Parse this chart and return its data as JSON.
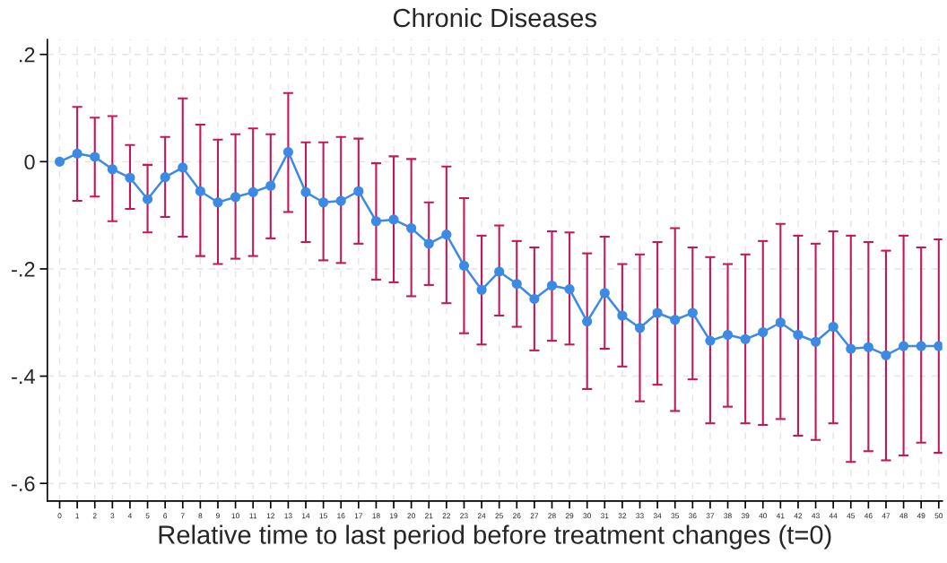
{
  "chart_data": {
    "type": "line",
    "title": "Chronic Diseases",
    "xlabel": "Relative time to last period before treatment changes (t=0)",
    "x": [
      0,
      1,
      2,
      3,
      4,
      5,
      6,
      7,
      8,
      9,
      10,
      11,
      12,
      13,
      14,
      15,
      16,
      17,
      18,
      19,
      20,
      21,
      22,
      23,
      24,
      25,
      26,
      27,
      28,
      29,
      30,
      31,
      32,
      33,
      34,
      35,
      36,
      37,
      38,
      39,
      40,
      41,
      42,
      43,
      44,
      45,
      46,
      47,
      48,
      49,
      50
    ],
    "series": [
      {
        "color": "#3b8ae6",
        "values": [
          0,
          0.015,
          0.009,
          -0.014,
          -0.03,
          -0.07,
          -0.029,
          -0.011,
          -0.055,
          -0.076,
          -0.066,
          -0.057,
          -0.045,
          0.018,
          -0.057,
          -0.076,
          -0.073,
          -0.055,
          -0.111,
          -0.108,
          -0.124,
          -0.153,
          -0.136,
          -0.194,
          -0.239,
          -0.205,
          -0.228,
          -0.256,
          -0.231,
          -0.238,
          -0.298,
          -0.245,
          -0.287,
          -0.31,
          -0.282,
          -0.295,
          -0.282,
          -0.334,
          -0.323,
          -0.331,
          -0.318,
          -0.3,
          -0.323,
          -0.336,
          -0.308,
          -0.349,
          -0.346,
          -0.361,
          -0.344,
          -0.344,
          -0.344
        ],
        "errors": [
          null,
          [
            -0.073,
            0.102
          ],
          [
            -0.065,
            0.082
          ],
          [
            -0.111,
            0.085
          ],
          [
            -0.088,
            0.031
          ],
          [
            -0.132,
            -0.006
          ],
          [
            -0.103,
            0.046
          ],
          [
            -0.14,
            0.118
          ],
          [
            -0.176,
            0.069
          ],
          [
            -0.191,
            0.041
          ],
          [
            -0.181,
            0.051
          ],
          [
            -0.176,
            0.062
          ],
          [
            -0.143,
            0.051
          ],
          [
            -0.094,
            0.128
          ],
          [
            -0.15,
            0.036
          ],
          [
            -0.184,
            0.036
          ],
          [
            -0.189,
            0.046
          ],
          [
            -0.153,
            0.043
          ],
          [
            -0.22,
            -0.003
          ],
          [
            -0.225,
            0.01
          ],
          [
            -0.251,
            0.005
          ],
          [
            -0.23,
            -0.076
          ],
          [
            -0.264,
            -0.009
          ],
          [
            -0.32,
            -0.068
          ],
          [
            -0.341,
            -0.138
          ],
          [
            -0.287,
            -0.119
          ],
          [
            -0.308,
            -0.148
          ],
          [
            -0.352,
            -0.16
          ],
          [
            -0.334,
            -0.13
          ],
          [
            -0.341,
            -0.132
          ],
          [
            -0.424,
            -0.171
          ],
          [
            -0.349,
            -0.14
          ],
          [
            -0.382,
            -0.191
          ],
          [
            -0.447,
            -0.173
          ],
          [
            -0.416,
            -0.15
          ],
          [
            -0.465,
            -0.124
          ],
          [
            -0.406,
            -0.16
          ],
          [
            -0.488,
            -0.178
          ],
          [
            -0.457,
            -0.191
          ],
          [
            -0.488,
            -0.173
          ],
          [
            -0.491,
            -0.148
          ],
          [
            -0.48,
            -0.116
          ],
          [
            -0.511,
            -0.138
          ],
          [
            -0.519,
            -0.153
          ],
          [
            -0.488,
            -0.13
          ],
          [
            -0.56,
            -0.138
          ],
          [
            -0.54,
            -0.15
          ],
          [
            -0.557,
            -0.166
          ],
          [
            -0.548,
            -0.138
          ],
          [
            -0.524,
            -0.16
          ],
          [
            -0.543,
            -0.145
          ]
        ]
      }
    ],
    "xlim": [
      -0.7,
      50.2
    ],
    "xticks": [
      0,
      1,
      2,
      3,
      4,
      5,
      6,
      7,
      8,
      9,
      10,
      11,
      12,
      13,
      14,
      15,
      16,
      17,
      18,
      19,
      20,
      21,
      22,
      23,
      24,
      25,
      26,
      27,
      28,
      29,
      30,
      31,
      32,
      33,
      34,
      35,
      36,
      37,
      38,
      39,
      40,
      41,
      42,
      43,
      44,
      45,
      46,
      47,
      48,
      49,
      50
    ],
    "ylim": [
      -0.633,
      0.228
    ],
    "yticks": [
      {
        "value": 0.2,
        "label": ".2"
      },
      0,
      {
        "value": -0.2,
        "label": "-.2"
      },
      {
        "value": -0.4,
        "label": "-.4"
      },
      {
        "value": -0.6,
        "label": "-.6"
      }
    ],
    "grid": true,
    "marker": "circle",
    "line_style": "solid"
  }
}
